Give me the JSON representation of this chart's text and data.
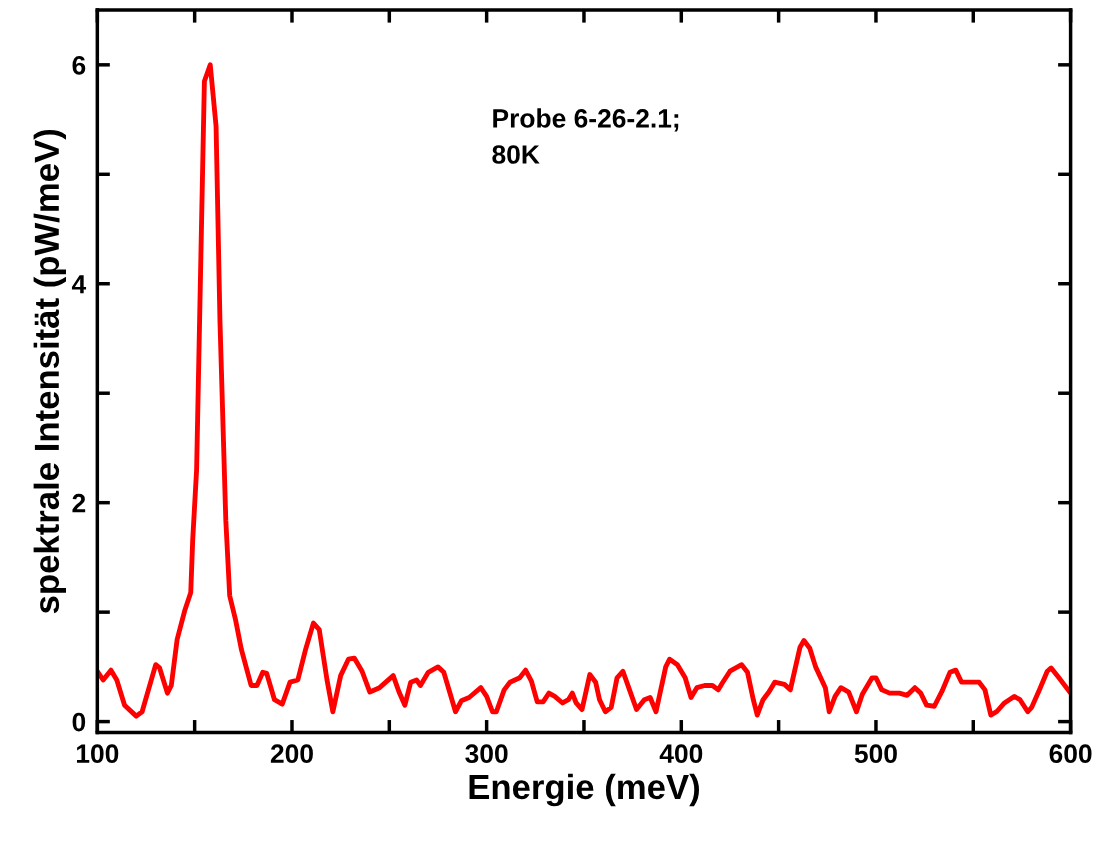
{
  "chart_data": {
    "type": "line",
    "xlabel": "Energie (meV)",
    "ylabel": "spektrale Intensität (pW/meV)",
    "annotations": [
      "Probe 6-26-2.1;\n80K"
    ],
    "xlim": [
      100,
      600
    ],
    "ylim": [
      -0.1,
      6.5
    ],
    "xticks": [
      100,
      {
        "value": 150,
        "label": null
      },
      200,
      {
        "value": 250,
        "label": null
      },
      300,
      {
        "value": 350,
        "label": null
      },
      400,
      {
        "value": 450,
        "label": null
      },
      500,
      {
        "value": 550,
        "label": null
      },
      600
    ],
    "yticks": [
      0,
      {
        "value": 1,
        "label": null
      },
      2,
      {
        "value": 3,
        "label": null
      },
      4,
      {
        "value": 5,
        "label": null
      },
      6
    ],
    "grid": false,
    "legend": false,
    "marker": "none",
    "line_style": "solid",
    "series": [
      {
        "color": "#ff0000",
        "x": [
          100,
          103,
          107,
          110,
          114,
          120,
          123,
          130,
          132,
          136,
          138,
          141,
          145,
          148,
          149,
          151,
          155,
          158,
          161,
          163,
          166,
          168,
          171,
          174,
          179,
          182,
          185,
          187,
          191,
          195,
          199,
          203,
          207,
          211,
          214,
          218,
          221,
          225,
          229,
          232,
          236,
          240,
          245,
          252,
          255,
          258,
          261,
          264,
          266,
          270,
          275,
          278,
          281,
          284,
          287,
          291,
          297,
          300,
          303,
          305,
          309,
          312,
          317,
          320,
          323,
          326,
          329,
          332,
          335,
          339,
          342,
          344,
          346,
          349,
          353,
          356,
          358,
          361,
          364,
          367,
          370,
          374,
          377,
          381,
          384,
          387,
          392,
          394,
          398,
          402,
          405,
          408,
          412,
          416,
          419,
          421,
          425,
          431,
          434,
          437,
          439,
          442,
          445,
          448,
          453,
          456,
          461,
          463,
          466,
          469,
          474,
          476,
          479,
          482,
          486,
          490,
          493,
          498,
          500,
          503,
          507,
          512,
          516,
          520,
          523,
          526,
          530,
          534,
          538,
          541,
          544,
          548,
          553,
          556,
          559,
          562,
          566,
          571,
          574,
          578,
          580,
          584,
          588,
          590,
          594,
          600
        ],
        "values": [
          0.46,
          0.38,
          0.47,
          0.38,
          0.15,
          0.05,
          0.09,
          0.52,
          0.49,
          0.26,
          0.33,
          0.75,
          1.02,
          1.18,
          1.66,
          2.3,
          5.85,
          6.0,
          5.44,
          3.66,
          1.84,
          1.15,
          0.93,
          0.66,
          0.33,
          0.33,
          0.45,
          0.44,
          0.2,
          0.16,
          0.36,
          0.38,
          0.66,
          0.9,
          0.84,
          0.38,
          0.09,
          0.42,
          0.57,
          0.58,
          0.46,
          0.27,
          0.31,
          0.42,
          0.27,
          0.15,
          0.36,
          0.38,
          0.33,
          0.45,
          0.5,
          0.45,
          0.27,
          0.09,
          0.19,
          0.22,
          0.31,
          0.23,
          0.09,
          0.09,
          0.29,
          0.36,
          0.4,
          0.47,
          0.37,
          0.18,
          0.18,
          0.26,
          0.23,
          0.17,
          0.2,
          0.26,
          0.17,
          0.11,
          0.43,
          0.36,
          0.2,
          0.09,
          0.13,
          0.4,
          0.46,
          0.26,
          0.11,
          0.2,
          0.22,
          0.09,
          0.5,
          0.57,
          0.52,
          0.4,
          0.22,
          0.31,
          0.33,
          0.33,
          0.29,
          0.35,
          0.46,
          0.52,
          0.45,
          0.2,
          0.06,
          0.2,
          0.27,
          0.36,
          0.34,
          0.29,
          0.68,
          0.74,
          0.67,
          0.5,
          0.31,
          0.09,
          0.23,
          0.31,
          0.27,
          0.09,
          0.25,
          0.4,
          0.4,
          0.29,
          0.26,
          0.26,
          0.24,
          0.31,
          0.26,
          0.15,
          0.14,
          0.28,
          0.45,
          0.47,
          0.36,
          0.36,
          0.36,
          0.29,
          0.06,
          0.09,
          0.17,
          0.23,
          0.2,
          0.09,
          0.13,
          0.29,
          0.46,
          0.49,
          0.4,
          0.26
        ]
      }
    ]
  }
}
